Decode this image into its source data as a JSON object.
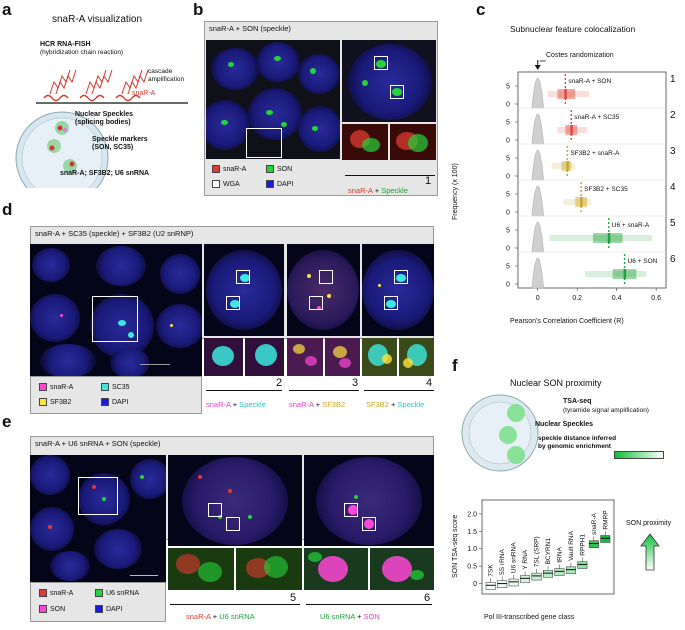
{
  "panels": {
    "a": {
      "letter": "a",
      "title": "snaR-A visualization",
      "hcr": "HCR RNA-FISH",
      "hcr_sub": "(hybridization chain reaction)",
      "cascade": "cascade\namplification",
      "target": "snaR-A",
      "speckles": "Nuclear Speckles\n(splicing bodies)",
      "markers": "Speckle markers\n(SON, SC35)",
      "bottom": "snaR-A; SF3B2; U6 snRNA"
    },
    "b": {
      "letter": "b",
      "header": "snaR-A + SON (speckle)",
      "legend": [
        "snaR-A",
        "SON",
        "WGA",
        "DAPI"
      ],
      "num": "1",
      "cap_a": "snaR-A",
      "cap_plus": "+",
      "cap_b": "Speckle"
    },
    "c": {
      "letter": "c",
      "title": "Subnuclear feature colocalization",
      "costes": "Costes randomization",
      "ylabel": "Frequency (x 100)",
      "xlabel": "Pearson's Correlation Coefficient (R)",
      "rows": [
        {
          "label": "snaR-A + SON",
          "num": "1",
          "color": "#e0463c"
        },
        {
          "label": "snaR-A + SC35",
          "num": "2",
          "color": "#e0463c"
        },
        {
          "label": "SF3B2 + snaR-A",
          "num": "3",
          "color": "#c8a52a"
        },
        {
          "label": "SF3B2 + SC35",
          "num": "4",
          "color": "#c8a52a"
        },
        {
          "label": "U6 + snaR-A",
          "num": "5",
          "color": "#1ea33a"
        },
        {
          "label": "U6 + SON",
          "num": "6",
          "color": "#1ea33a"
        }
      ],
      "xticks": [
        "0",
        "0.2",
        "0.4",
        "0.6"
      ],
      "yticks": [
        "0",
        "5"
      ]
    },
    "d": {
      "letter": "d",
      "header": "snaR-A + SC35 (speckle) + SF3B2 (U2 snRNP)",
      "legend": [
        "snaR-A",
        "SC35",
        "SF3B2",
        "DAPI"
      ],
      "num2": "2",
      "num3": "3",
      "num4": "4",
      "cap2a": "snaR-A",
      "cap2b": "Speckle",
      "cap3a": "snaR-A",
      "cap3b": "SF3B2",
      "cap4a": "SF3B2",
      "cap4b": "Speckle",
      "plus": "+"
    },
    "e": {
      "letter": "e",
      "header": "snaR-A + U6 snRNA + SON (speckle)",
      "legend": [
        "snaR-A",
        "U6 snRNA",
        "SON",
        "DAPI"
      ],
      "num5": "5",
      "num6": "6",
      "cap5a": "snaR-A",
      "cap5b": "U6 snRNA",
      "cap6a": "U6 snRNA",
      "cap6b": "SON",
      "plus": "+"
    },
    "f": {
      "letter": "f",
      "title": "Nuclear SON proximity",
      "tsa": "TSA-seq",
      "tsa_sub": "(tyramide signal amplification)",
      "speckles": "Nuclear Speckles",
      "inferred": "speckle distance inferred\nby genomic enrichment",
      "ylabel": "SON TSA-seq score",
      "xlabel": "Pol III-transcribed gene class",
      "proximity": "SON proximity",
      "yticks": [
        "0",
        "0.5",
        "1.0",
        "1.5",
        "2.0"
      ]
    }
  },
  "chart_data": [
    {
      "type": "box",
      "title": "Subnuclear feature colocalization",
      "xlabel": "Pearson's Correlation Coefficient (R)",
      "ylabel": "Frequency (x 100)",
      "xlim": [
        -0.1,
        0.65
      ],
      "series": [
        {
          "name": "snaR-A + SON",
          "median": 0.14,
          "q1": 0.1,
          "q3": 0.19,
          "min": 0.05,
          "max": 0.26
        },
        {
          "name": "snaR-A + SC35",
          "median": 0.17,
          "q1": 0.14,
          "q3": 0.2,
          "min": 0.1,
          "max": 0.25
        },
        {
          "name": "SF3B2 + snaR-A",
          "median": 0.15,
          "q1": 0.12,
          "q3": 0.17,
          "min": 0.07,
          "max": 0.19
        },
        {
          "name": "SF3B2 + SC35",
          "median": 0.22,
          "q1": 0.19,
          "q3": 0.25,
          "min": 0.13,
          "max": 0.27
        },
        {
          "name": "U6 + snaR-A",
          "median": 0.36,
          "q1": 0.28,
          "q3": 0.43,
          "min": 0.06,
          "max": 0.58
        },
        {
          "name": "U6 + SON",
          "median": 0.44,
          "q1": 0.38,
          "q3": 0.5,
          "min": 0.24,
          "max": 0.55
        }
      ],
      "costes_randomization_R": 0
    },
    {
      "type": "box",
      "title": "Nuclear SON proximity",
      "xlabel": "Pol III-transcribed gene class",
      "ylabel": "SON TSA-seq score",
      "ylim": [
        -0.3,
        2.4
      ],
      "categories": [
        "7SK",
        "5S rRNA",
        "U6 snRNA",
        "Y RNA",
        "7SL (SRP)",
        "BCYRN1",
        "tRNA",
        "Vault RNA",
        "RPPH1",
        "snaR-A",
        "RMRP"
      ],
      "values": [
        -0.05,
        0.0,
        0.05,
        0.15,
        0.22,
        0.3,
        0.35,
        0.4,
        0.55,
        1.15,
        1.3
      ]
    }
  ]
}
